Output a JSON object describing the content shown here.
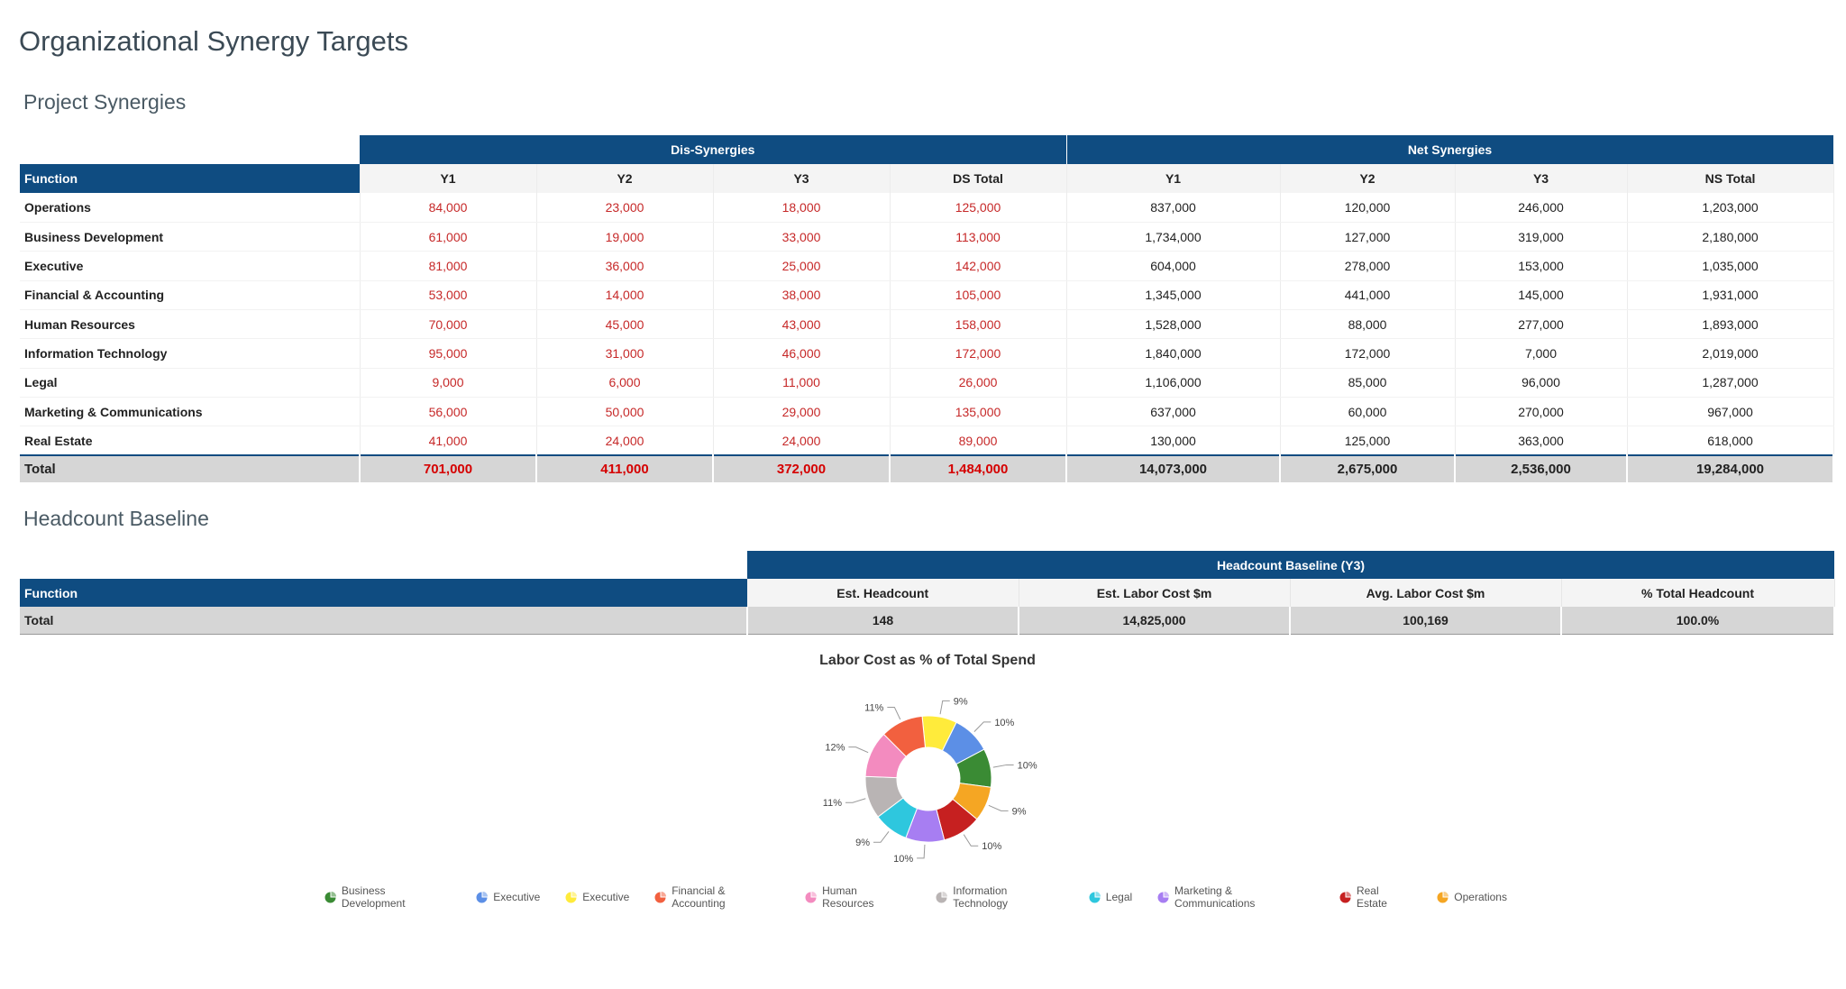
{
  "page_title": "Organizational Synergy Targets",
  "project_synergies": {
    "section_title": "Project Synergies",
    "group_headers": {
      "dis": "Dis-Synergies",
      "net": "Net Synergies"
    },
    "function_header": "Function",
    "columns": [
      "Y1",
      "Y2",
      "Y3",
      "DS Total",
      "Y1",
      "Y2",
      "Y3",
      "NS Total"
    ],
    "rows": [
      {
        "function": "Operations",
        "ds": [
          "84,000",
          "23,000",
          "18,000",
          "125,000"
        ],
        "ns": [
          "837,000",
          "120,000",
          "246,000",
          "1,203,000"
        ]
      },
      {
        "function": "Business Development",
        "ds": [
          "61,000",
          "19,000",
          "33,000",
          "113,000"
        ],
        "ns": [
          "1,734,000",
          "127,000",
          "319,000",
          "2,180,000"
        ]
      },
      {
        "function": "Executive",
        "ds": [
          "81,000",
          "36,000",
          "25,000",
          "142,000"
        ],
        "ns": [
          "604,000",
          "278,000",
          "153,000",
          "1,035,000"
        ]
      },
      {
        "function": "Financial & Accounting",
        "ds": [
          "53,000",
          "14,000",
          "38,000",
          "105,000"
        ],
        "ns": [
          "1,345,000",
          "441,000",
          "145,000",
          "1,931,000"
        ]
      },
      {
        "function": "Human Resources",
        "ds": [
          "70,000",
          "45,000",
          "43,000",
          "158,000"
        ],
        "ns": [
          "1,528,000",
          "88,000",
          "277,000",
          "1,893,000"
        ]
      },
      {
        "function": "Information Technology",
        "ds": [
          "95,000",
          "31,000",
          "46,000",
          "172,000"
        ],
        "ns": [
          "1,840,000",
          "172,000",
          "7,000",
          "2,019,000"
        ]
      },
      {
        "function": "Legal",
        "ds": [
          "9,000",
          "6,000",
          "11,000",
          "26,000"
        ],
        "ns": [
          "1,106,000",
          "85,000",
          "96,000",
          "1,287,000"
        ]
      },
      {
        "function": "Marketing & Communications",
        "ds": [
          "56,000",
          "50,000",
          "29,000",
          "135,000"
        ],
        "ns": [
          "637,000",
          "60,000",
          "270,000",
          "967,000"
        ]
      },
      {
        "function": "Real Estate",
        "ds": [
          "41,000",
          "24,000",
          "24,000",
          "89,000"
        ],
        "ns": [
          "130,000",
          "125,000",
          "363,000",
          "618,000"
        ]
      }
    ],
    "total": {
      "label": "Total",
      "ds": [
        "701,000",
        "411,000",
        "372,000",
        "1,484,000"
      ],
      "ns": [
        "14,073,000",
        "2,675,000",
        "2,536,000",
        "19,284,000"
      ]
    }
  },
  "headcount_baseline": {
    "section_title": "Headcount Baseline",
    "group_header": "Headcount Baseline (Y3)",
    "function_header": "Function",
    "columns": [
      "Est. Headcount",
      "Est. Labor Cost $m",
      "Avg. Labor Cost $m",
      "% Total Headcount"
    ],
    "total": {
      "label": "Total",
      "values": [
        "148",
        "14,825,000",
        "100,169",
        "100.0%"
      ]
    }
  },
  "chart_data": {
    "type": "pie",
    "title": "Labor Cost as % of Total Spend",
    "donut": true,
    "slices": [
      {
        "label": "Executive",
        "value": 9,
        "display": "9%",
        "color": "#ffeb3b"
      },
      {
        "label": "Executive",
        "value": 10,
        "display": "10%",
        "color": "#5c8fe6"
      },
      {
        "label": "Business Development",
        "value": 10,
        "display": "10%",
        "color": "#3a8b34"
      },
      {
        "label": "Operations",
        "value": 9,
        "display": "9%",
        "color": "#f5a623"
      },
      {
        "label": "Real Estate",
        "value": 10,
        "display": "10%",
        "color": "#c62020"
      },
      {
        "label": "Marketing & Communications",
        "value": 10,
        "display": "10%",
        "color": "#a77ef2"
      },
      {
        "label": "Legal",
        "value": 9,
        "display": "9%",
        "color": "#2ec7de"
      },
      {
        "label": "Information Technology",
        "value": 11,
        "display": "11%",
        "color": "#b9b4b4"
      },
      {
        "label": "Human Resources",
        "value": 12,
        "display": "12%",
        "color": "#f38bbf"
      },
      {
        "label": "Financial & Accounting",
        "value": 11,
        "display": "11%",
        "color": "#f2603f"
      }
    ],
    "legend": [
      {
        "label": "Business Development",
        "color": "#3a8b34"
      },
      {
        "label": "Executive",
        "color": "#5c8fe6"
      },
      {
        "label": "Executive",
        "color": "#ffeb3b"
      },
      {
        "label": "Financial & Accounting",
        "color": "#f2603f"
      },
      {
        "label": "Human Resources",
        "color": "#f38bbf"
      },
      {
        "label": "Information Technology",
        "color": "#b9b4b4"
      },
      {
        "label": "Legal",
        "color": "#2ec7de"
      },
      {
        "label": "Marketing & Communications",
        "color": "#a77ef2"
      },
      {
        "label": "Real Estate",
        "color": "#c62020"
      },
      {
        "label": "Operations",
        "color": "#f5a623"
      }
    ]
  }
}
